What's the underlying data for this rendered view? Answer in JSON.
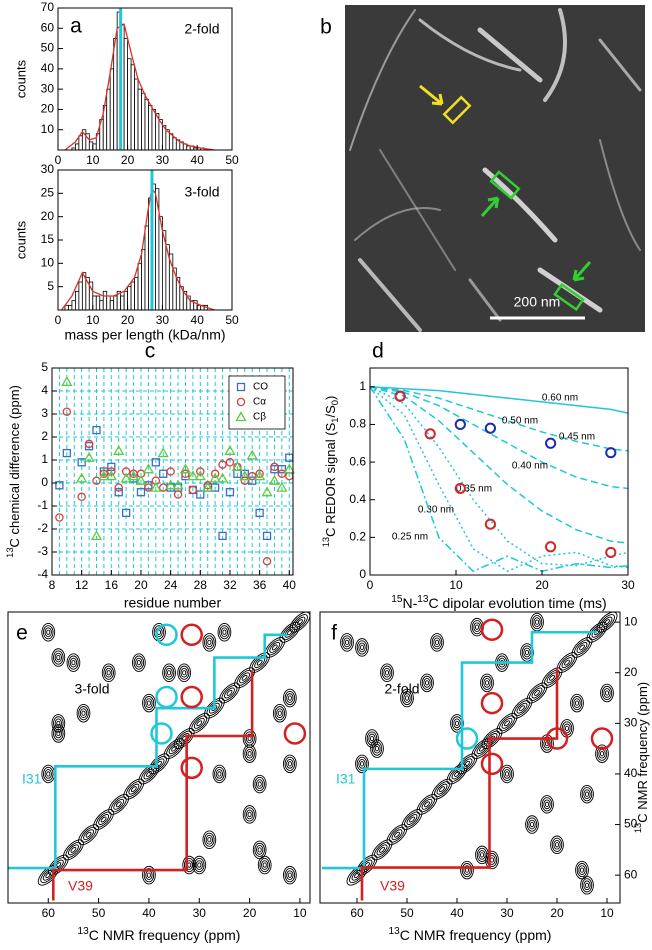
{
  "chart_data": [
    {
      "type": "histogram",
      "panel": "a",
      "annotation": "2-fold",
      "ylabel": "counts",
      "bins": [
        0,
        1,
        2,
        3,
        4,
        5,
        6,
        7,
        8,
        9,
        10,
        11,
        12,
        13,
        14,
        15,
        16,
        17,
        18,
        19,
        20,
        21,
        22,
        23,
        24,
        25,
        26,
        27,
        28,
        29,
        30,
        31,
        32,
        33,
        34,
        35,
        36,
        37,
        38,
        39,
        40,
        41,
        42,
        43,
        44,
        45,
        46
      ],
      "values": [
        0,
        0,
        0,
        0,
        1,
        3,
        7,
        10,
        8,
        4,
        3,
        8,
        15,
        22,
        30,
        40,
        55,
        68,
        62,
        55,
        45,
        42,
        35,
        30,
        28,
        25,
        22,
        20,
        18,
        15,
        12,
        10,
        8,
        6,
        5,
        4,
        3,
        2,
        2,
        1,
        1,
        1,
        0,
        0,
        0,
        0
      ],
      "color": "#000000",
      "fit": {
        "color": "#e0302a",
        "x": [
          2,
          5,
          7,
          9,
          11,
          13,
          15,
          17,
          19,
          21,
          23,
          25,
          27,
          29,
          31,
          33,
          35,
          38,
          41,
          45
        ],
        "values": [
          0,
          4,
          9,
          5,
          6,
          18,
          38,
          60,
          62,
          48,
          35,
          27,
          21,
          15,
          10,
          7,
          4,
          2,
          1,
          0
        ]
      },
      "marker": {
        "value": 18,
        "color": "#1ec8d8"
      },
      "xlim": [
        0,
        50
      ],
      "ylim": [
        0,
        70
      ],
      "xticks": [
        0,
        10,
        20,
        30,
        40,
        50
      ],
      "yticks": [
        10,
        20,
        30,
        40,
        50,
        60,
        70
      ]
    },
    {
      "type": "histogram",
      "annotation": "3-fold",
      "ylabel": "counts",
      "xlabel": "mass per length (kDa/nm)",
      "bins": [
        0,
        1,
        2,
        3,
        4,
        5,
        6,
        7,
        8,
        9,
        10,
        11,
        12,
        13,
        14,
        15,
        16,
        17,
        18,
        19,
        20,
        21,
        22,
        23,
        24,
        25,
        26,
        27,
        28,
        29,
        30,
        31,
        32,
        33,
        34,
        35,
        36,
        37,
        38,
        39,
        40,
        41,
        42,
        43,
        44,
        45,
        46
      ],
      "values": [
        0,
        0,
        1,
        1,
        2,
        4,
        6,
        8,
        7,
        6,
        3,
        3,
        2,
        4,
        3,
        2,
        3,
        4,
        3,
        4,
        5,
        6,
        7,
        10,
        13,
        18,
        24,
        27,
        26,
        20,
        17,
        14,
        12,
        9,
        7,
        5,
        4,
        3,
        2,
        2,
        1,
        1,
        1,
        0,
        0,
        0
      ],
      "color": "#000000",
      "fit": {
        "color": "#e0302a",
        "x": [
          1,
          4,
          7,
          10,
          13,
          16,
          19,
          22,
          24,
          26,
          27,
          28,
          30,
          32,
          34,
          36,
          38,
          41,
          45
        ],
        "values": [
          0,
          3,
          8,
          4,
          3,
          3,
          4,
          7,
          12,
          22,
          26,
          25,
          17,
          11,
          7,
          4,
          2,
          1,
          0
        ]
      },
      "marker": {
        "value": 27,
        "color": "#1ec8d8"
      },
      "xlim": [
        0,
        50
      ],
      "ylim": [
        0,
        30
      ],
      "xticks": [
        0,
        10,
        20,
        30,
        40,
        50
      ],
      "yticks": [
        5,
        10,
        15,
        20,
        25,
        30
      ]
    },
    {
      "type": "scatter",
      "panel": "c",
      "ylabel": [
        {
          "sup": "13"
        },
        {
          "text": "C chemical difference (ppm)"
        }
      ],
      "xlabel": "residue number",
      "x": [
        9,
        10,
        11,
        12,
        13,
        14,
        15,
        16,
        17,
        18,
        19,
        20,
        21,
        22,
        23,
        24,
        25,
        26,
        27,
        28,
        29,
        30,
        31,
        32,
        33,
        34,
        35,
        36,
        37,
        38,
        39,
        40
      ],
      "series": [
        {
          "name": "CO",
          "color": "#3a6ec8",
          "marker": "square",
          "values": [
            -0.1,
            1.3,
            null,
            0.9,
            1.6,
            2.3,
            0.5,
            0.7,
            -0.4,
            -1.3,
            0.2,
            -0.4,
            -0.1,
            0.9,
            0.4,
            -0.2,
            -0.2,
            0.3,
            -0.3,
            -0.5,
            -0.2,
            -0.2,
            -2.3,
            -0.4,
            0.4,
            0.4,
            0.1,
            -1.3,
            -2.3,
            0.6,
            0.6,
            1.1
          ]
        },
        {
          "name": "Cα",
          "color": "#d84040",
          "marker": "circle",
          "values": [
            -1.5,
            3.1,
            null,
            -0.6,
            1.7,
            0.1,
            0.4,
            0.5,
            -0.2,
            0.5,
            0.4,
            0.4,
            -0.2,
            0.1,
            -0.2,
            0.5,
            -0.5,
            0.4,
            -0.3,
            0.5,
            -0.1,
            0.4,
            0.8,
            0.9,
            0.7,
            0.1,
            0.3,
            0.4,
            -3.4,
            0.7,
            0.4,
            0.3
          ]
        },
        {
          "name": "Cβ",
          "color": "#5ccc3c",
          "marker": "triangle",
          "values": [
            null,
            4.4,
            null,
            0.2,
            1.1,
            -2.3,
            0.3,
            0.3,
            1.4,
            0.2,
            0.3,
            0.1,
            0.6,
            -0.2,
            1.3,
            -0.1,
            -0.1,
            0.6,
            0.3,
            0.3,
            -0.2,
            0.2,
            0.2,
            1.4,
            0.7,
            0.3,
            1.2,
            0.3,
            -0.4,
            0.1,
            -0.2,
            0.6
          ]
        }
      ],
      "legend": "upper right",
      "grid": true,
      "grid_color": "#1ec8d8",
      "xlim": [
        8,
        40.5
      ],
      "ylim": [
        -4,
        5
      ],
      "xticks": [
        8,
        12,
        16,
        20,
        24,
        28,
        32,
        36,
        40
      ],
      "yticks": [
        -4,
        -3,
        -2,
        -1,
        0,
        1,
        2,
        3,
        4,
        5
      ]
    },
    {
      "type": "scatter",
      "panel": "d",
      "ylabel": [
        {
          "sup": "13"
        },
        {
          "text": "C REDOR signal (S"
        },
        {
          "sub": "1"
        },
        {
          "text": "/S"
        },
        {
          "sub": "0"
        },
        {
          "text": ")"
        }
      ],
      "xlabel": [
        {
          "sup": "15"
        },
        {
          "text": "N-"
        },
        {
          "sup": "13"
        },
        {
          "text": "C dipolar evolution time (ms)"
        }
      ],
      "series": [
        {
          "name": "0.60 nm",
          "color": "#1ec8d8",
          "mode": "line",
          "dash": "solid",
          "x": [
            0,
            4,
            8,
            12,
            16,
            20,
            24,
            28,
            30
          ],
          "values": [
            1,
            0.99,
            0.98,
            0.96,
            0.94,
            0.92,
            0.9,
            0.88,
            0.86
          ]
        },
        {
          "name": "0.50 nm",
          "color": "#1ec8d8",
          "mode": "line",
          "dash": "dashed",
          "x": [
            0,
            4,
            8,
            12,
            16,
            20,
            24,
            28,
            30
          ],
          "values": [
            1,
            0.98,
            0.94,
            0.88,
            0.82,
            0.76,
            0.71,
            0.67,
            0.66
          ]
        },
        {
          "name": "0.45 nm",
          "color": "#1ec8d8",
          "mode": "line",
          "dash": "dashed",
          "x": [
            0,
            4,
            8,
            12,
            16,
            20,
            24,
            28,
            30
          ],
          "values": [
            1,
            0.97,
            0.9,
            0.8,
            0.7,
            0.6,
            0.52,
            0.47,
            0.46
          ]
        },
        {
          "name": "0.40 nm",
          "color": "#1ec8d8",
          "mode": "line",
          "dash": "dashed",
          "x": [
            0,
            4,
            8,
            12,
            16,
            20,
            24,
            28,
            30
          ],
          "values": [
            1,
            0.95,
            0.82,
            0.65,
            0.48,
            0.34,
            0.24,
            0.18,
            0.17
          ]
        },
        {
          "name": "0.35 nm",
          "color": "#1ec8d8",
          "mode": "line",
          "dash": "dotted",
          "x": [
            0,
            4,
            8,
            12,
            16,
            20,
            24,
            28,
            30
          ],
          "values": [
            1,
            0.91,
            0.68,
            0.4,
            0.18,
            0.06,
            0.05,
            0.1,
            0.12
          ]
        },
        {
          "name": "0.30 nm",
          "color": "#1ec8d8",
          "mode": "line",
          "dash": "dotted",
          "x": [
            0,
            4,
            8,
            12,
            16,
            20,
            24,
            28,
            30
          ],
          "values": [
            1,
            0.85,
            0.48,
            0.14,
            0.02,
            0.1,
            0.12,
            0.05,
            0.04
          ]
        },
        {
          "name": "0.25 nm",
          "color": "#1ec8d8",
          "mode": "line",
          "dash": "dashdot",
          "x": [
            0,
            4,
            8,
            12,
            16,
            20,
            24,
            28,
            30
          ],
          "values": [
            1,
            0.72,
            0.2,
            0.02,
            0.1,
            0.02,
            0.06,
            0.04,
            0.05
          ]
        },
        {
          "color": "#1e2ab4",
          "marker": "circle",
          "x": [
            3.5,
            10.5,
            14,
            21,
            28
          ],
          "values": [
            0.95,
            0.8,
            0.78,
            0.7,
            0.65
          ]
        },
        {
          "color": "#d02828",
          "marker": "circle",
          "x": [
            3.5,
            7,
            10.5,
            14,
            21,
            28
          ],
          "values": [
            0.95,
            0.75,
            0.46,
            0.27,
            0.15,
            0.12
          ]
        }
      ],
      "xlim": [
        0,
        30
      ],
      "ylim": [
        0,
        1.1
      ],
      "xticks": [
        0,
        10,
        20,
        30
      ],
      "yticks": [
        0,
        0.2,
        0.4,
        0.6,
        0.8,
        1
      ]
    },
    {
      "type": "contour",
      "panel": "e",
      "annotation": "3-fold",
      "xlabel": [
        {
          "sup": "13"
        },
        {
          "text": "C NMR frequency (ppm)"
        }
      ],
      "peaks": {
        "x": [
          60,
          58,
          55,
          52,
          49,
          46,
          43,
          40,
          38,
          35,
          33,
          30,
          27,
          24,
          21,
          18,
          15,
          12,
          10,
          60,
          40,
          58,
          30,
          55,
          18,
          53,
          28,
          42,
          18,
          40,
          26,
          38,
          12,
          36,
          20,
          33,
          20,
          58,
          32,
          28,
          14,
          25,
          12,
          48,
          20,
          17,
          58,
          60,
          12
        ],
        "y": [
          60,
          58,
          55,
          52,
          49,
          46,
          43,
          40,
          38,
          35,
          33,
          30,
          27,
          24,
          21,
          18,
          15,
          12,
          10,
          40,
          60,
          30,
          58,
          18,
          55,
          28,
          53,
          18,
          42,
          26,
          40,
          12,
          38,
          20,
          36,
          20,
          33,
          32,
          58,
          14,
          28,
          12,
          25,
          20,
          48,
          58,
          17,
          12,
          60
        ]
      },
      "paths": [
        {
          "name": "I31",
          "color": "#1ec8d8",
          "x": [
            68,
            58.6,
            58.6,
            38.5,
            38.5,
            27,
            27,
            17,
            17,
            12.5
          ],
          "y": [
            58.6,
            58.6,
            38.5,
            38.5,
            27,
            27,
            17,
            17,
            12.5,
            12.5
          ]
        },
        {
          "name": "V39",
          "color": "#d42020",
          "x": [
            59,
            59,
            32.5,
            32.5,
            19.5,
            19.5
          ],
          "y": [
            65,
            59,
            59,
            32.5,
            32.5,
            19.5
          ]
        }
      ],
      "circles": [
        {
          "color": "#d42020",
          "x": [
            31.5,
            31.5,
            11,
            31.5
          ],
          "y": [
            12.5,
            24.8,
            32,
            38.8
          ]
        },
        {
          "color": "#1ec8d8",
          "x": [
            36.5,
            36.5,
            37.5
          ],
          "y": [
            12.5,
            24.8,
            32
          ]
        }
      ],
      "xlim": [
        68,
        8
      ],
      "ylim": [
        65.5,
        8
      ],
      "xticks": [
        60,
        50,
        40,
        30,
        20,
        10
      ]
    },
    {
      "type": "contour",
      "panel": "f",
      "annotation": "2-fold",
      "xlabel": [
        {
          "sup": "13"
        },
        {
          "text": "C NMR frequency (ppm)"
        }
      ],
      "ylabel": [
        {
          "sup": "13"
        },
        {
          "text": "C NMR frequency (ppm)"
        }
      ],
      "peaks": {
        "x": [
          60,
          58,
          55,
          52,
          49,
          46,
          43,
          40,
          38,
          35,
          33,
          30,
          27,
          24,
          21,
          18,
          15,
          12,
          10,
          59,
          38,
          57,
          33,
          54,
          20,
          50,
          25,
          44,
          14,
          40,
          30,
          36,
          11,
          34,
          22,
          31,
          18,
          56,
          35,
          26,
          16,
          24,
          10,
          46,
          22,
          15,
          59,
          62,
          14
        ],
        "y": [
          60,
          58,
          55,
          52,
          49,
          46,
          43,
          40,
          38,
          35,
          33,
          30,
          27,
          24,
          21,
          18,
          15,
          12,
          10,
          38,
          59,
          33,
          57,
          20,
          54,
          25,
          50,
          14,
          44,
          30,
          40,
          11,
          36,
          22,
          34,
          18,
          31,
          35,
          56,
          16,
          26,
          10,
          24,
          22,
          46,
          59,
          15,
          14,
          62
        ]
      },
      "paths": [
        {
          "name": "I31",
          "color": "#1ec8d8",
          "x": [
            67,
            58.6,
            58.6,
            39,
            39,
            25,
            25,
            12,
            12
          ],
          "y": [
            58.6,
            58.6,
            39,
            39,
            18,
            18,
            12,
            12,
            12
          ]
        },
        {
          "name": "V39",
          "color": "#d42020",
          "x": [
            59,
            59,
            33.5,
            33.5,
            20,
            20
          ],
          "y": [
            65,
            58.5,
            58.5,
            33,
            33,
            19
          ]
        }
      ],
      "circles": [
        {
          "color": "#d42020",
          "x": [
            33,
            33,
            20,
            11,
            33
          ],
          "y": [
            11.5,
            26,
            33,
            33,
            38
          ]
        },
        {
          "color": "#1ec8d8",
          "x": [
            38
          ],
          "y": [
            33
          ]
        }
      ],
      "yaxis_side": "right",
      "xlim": [
        67.4,
        7.4
      ],
      "ylim": [
        65.5,
        8
      ],
      "xticks": [
        60,
        50,
        40,
        30,
        20,
        10
      ],
      "yticks": [
        10,
        20,
        30,
        40,
        50,
        60
      ]
    }
  ],
  "image": {
    "panel": "b",
    "scale_bar": "200 nm"
  }
}
